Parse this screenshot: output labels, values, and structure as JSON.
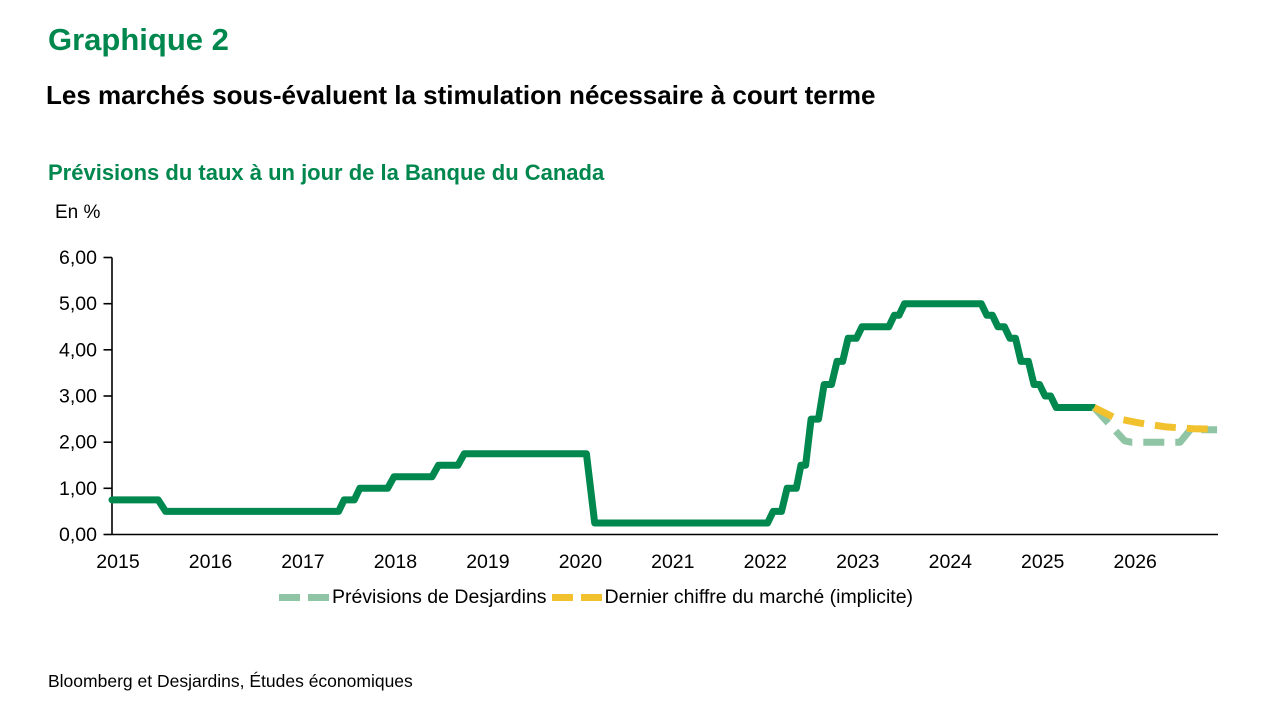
{
  "header": {
    "kicker": "Graphique 2",
    "title": "Les marchés sous-évaluent la stimulation nécessaire à court terme",
    "subtitle": "Prévisions du taux à un jour de la Banque du Canada",
    "unit_label": "En %"
  },
  "source": "Bloomberg et Desjardins, Études économiques",
  "colors": {
    "brand_green": "#00874E",
    "policy_line_green": "#00884F",
    "forecast_sage": "#8FC5A4",
    "market_yellow": "#F1C12E",
    "axis_black": "#000000"
  },
  "legend": {
    "items": [
      {
        "id": "desjardins-forecast",
        "label": "Prévisions de Desjardins",
        "color": "#8FC5A4"
      },
      {
        "id": "market-implied",
        "label": "Dernier chiffre du marché (implicite)",
        "color": "#F1C12E"
      }
    ]
  },
  "chart_data": {
    "type": "line",
    "title": "Prévisions du taux à un jour de la Banque du Canada",
    "xlabel": "",
    "ylabel": "En %",
    "ylim": [
      0,
      6
    ],
    "xlim": [
      2015,
      2026.96
    ],
    "grid": false,
    "legend_position": "bottom",
    "y_ticks": [
      {
        "value": 0,
        "label": "0,00"
      },
      {
        "value": 1,
        "label": "1,00"
      },
      {
        "value": 2,
        "label": "2,00"
      },
      {
        "value": 3,
        "label": "3,00"
      },
      {
        "value": 4,
        "label": "4,00"
      },
      {
        "value": 5,
        "label": "5,00"
      },
      {
        "value": 6,
        "label": "6,00"
      }
    ],
    "x_ticks": [
      {
        "value": 2015,
        "label": "2015"
      },
      {
        "value": 2016,
        "label": "2016"
      },
      {
        "value": 2017,
        "label": "2017"
      },
      {
        "value": 2018,
        "label": "2018"
      },
      {
        "value": 2019,
        "label": "2019"
      },
      {
        "value": 2020,
        "label": "2020"
      },
      {
        "value": 2021,
        "label": "2021"
      },
      {
        "value": 2022,
        "label": "2022"
      },
      {
        "value": 2023,
        "label": "2023"
      },
      {
        "value": 2024,
        "label": "2024"
      },
      {
        "value": 2025,
        "label": "2025"
      },
      {
        "value": 2026,
        "label": "2026"
      }
    ],
    "series": [
      {
        "id": "policy-rate",
        "style": "solid",
        "color": "#00884F",
        "points": [
          [
            2015.0,
            0.75
          ],
          [
            2015.5,
            0.75
          ],
          [
            2015.58,
            0.5
          ],
          [
            2017.45,
            0.5
          ],
          [
            2017.51,
            0.75
          ],
          [
            2017.62,
            0.75
          ],
          [
            2017.68,
            1.0
          ],
          [
            2017.98,
            1.0
          ],
          [
            2018.05,
            1.25
          ],
          [
            2018.46,
            1.25
          ],
          [
            2018.53,
            1.5
          ],
          [
            2018.74,
            1.5
          ],
          [
            2018.81,
            1.75
          ],
          [
            2020.13,
            1.75
          ],
          [
            2020.22,
            0.25
          ],
          [
            2022.09,
            0.25
          ],
          [
            2022.15,
            0.5
          ],
          [
            2022.24,
            0.5
          ],
          [
            2022.3,
            1.0
          ],
          [
            2022.4,
            1.0
          ],
          [
            2022.45,
            1.5
          ],
          [
            2022.5,
            1.5
          ],
          [
            2022.56,
            2.5
          ],
          [
            2022.64,
            2.5
          ],
          [
            2022.7,
            3.25
          ],
          [
            2022.78,
            3.25
          ],
          [
            2022.84,
            3.75
          ],
          [
            2022.9,
            3.75
          ],
          [
            2022.96,
            4.25
          ],
          [
            2023.05,
            4.25
          ],
          [
            2023.11,
            4.5
          ],
          [
            2023.4,
            4.5
          ],
          [
            2023.46,
            4.75
          ],
          [
            2023.51,
            4.75
          ],
          [
            2023.57,
            5.0
          ],
          [
            2024.4,
            5.0
          ],
          [
            2024.46,
            4.75
          ],
          [
            2024.52,
            4.75
          ],
          [
            2024.58,
            4.5
          ],
          [
            2024.65,
            4.5
          ],
          [
            2024.71,
            4.25
          ],
          [
            2024.77,
            4.25
          ],
          [
            2024.83,
            3.75
          ],
          [
            2024.91,
            3.75
          ],
          [
            2024.97,
            3.25
          ],
          [
            2025.03,
            3.25
          ],
          [
            2025.09,
            3.0
          ],
          [
            2025.15,
            3.0
          ],
          [
            2025.21,
            2.75
          ],
          [
            2025.62,
            2.75
          ]
        ]
      },
      {
        "id": "desjardins-forecast",
        "name": "Prévisions de Desjardins",
        "style": "dashed",
        "color": "#8FC5A4",
        "points": [
          [
            2025.62,
            2.75
          ],
          [
            2025.95,
            2.03
          ],
          [
            2026.02,
            2.0
          ],
          [
            2026.55,
            2.0
          ],
          [
            2026.66,
            2.27
          ],
          [
            2026.95,
            2.27
          ]
        ]
      },
      {
        "id": "market-implied",
        "name": "Dernier chiffre du marché (implicite)",
        "style": "dashed",
        "color": "#F1C12E",
        "points": [
          [
            2025.62,
            2.75
          ],
          [
            2025.85,
            2.52
          ],
          [
            2026.1,
            2.42
          ],
          [
            2026.4,
            2.33
          ],
          [
            2026.7,
            2.29
          ],
          [
            2026.95,
            2.28
          ]
        ]
      }
    ]
  }
}
